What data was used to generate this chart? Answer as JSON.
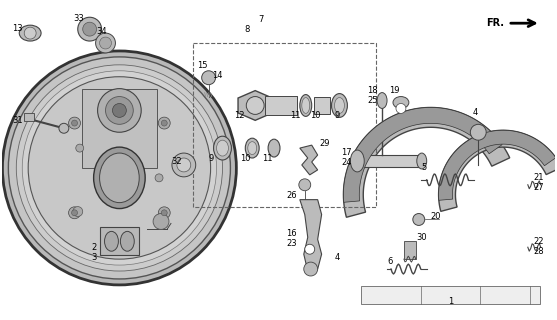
{
  "bg_color": "#ffffff",
  "line_color": "#000000",
  "gray_dark": "#444444",
  "gray_mid": "#888888",
  "gray_light": "#cccccc",
  "gray_fill": "#bbbbbb",
  "gray_plate": "#aaaaaa",
  "figsize": [
    5.57,
    3.2
  ],
  "dpi": 100
}
